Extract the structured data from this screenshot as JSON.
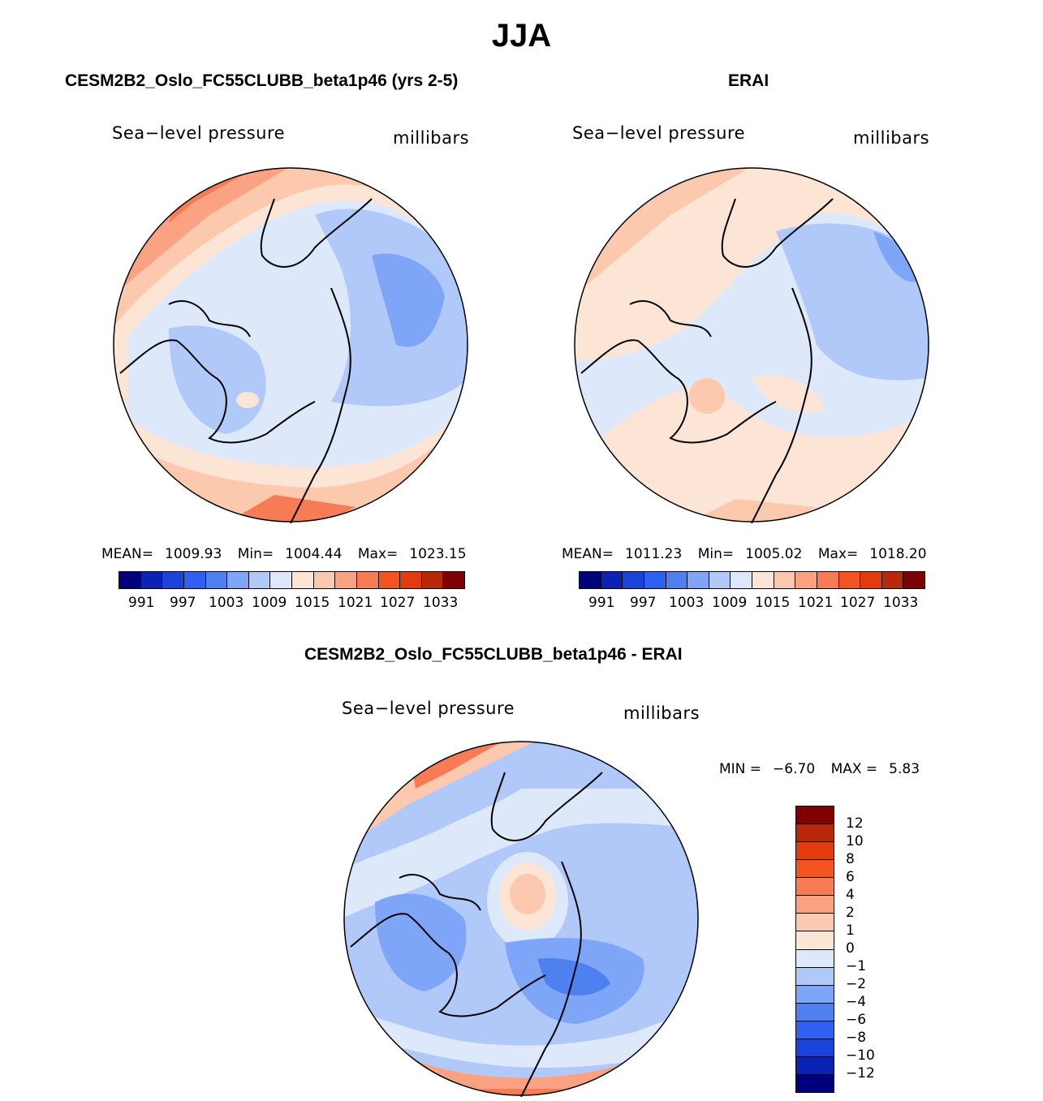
{
  "title": "JJA",
  "colors": {
    "abs_scale": [
      "#00007f",
      "#0a23b4",
      "#1a43d9",
      "#2e61f2",
      "#4f80f0",
      "#7ea5f7",
      "#b0c9f9",
      "#dde9fb",
      "#fde5d6",
      "#fcc8ae",
      "#fba283",
      "#f77b54",
      "#f4541f",
      "#e23c0e",
      "#b82809",
      "#7f0000"
    ],
    "diff_scale": [
      "#00007f",
      "#0a23b4",
      "#1a43d9",
      "#2e61f2",
      "#4f80f0",
      "#7ea5f7",
      "#b0c9f9",
      "#dde9fb",
      "#fde5d6",
      "#fcc8ae",
      "#fba283",
      "#f77b54",
      "#f4541f",
      "#e23c0e",
      "#b82809",
      "#7f0000"
    ],
    "coastline": "#000000"
  },
  "panels": [
    {
      "id": "model",
      "title": "CESM2B2_Oslo_FC55CLUBB_beta1p46 (yrs 2-5)",
      "variable": "Sea−level pressure",
      "units": "millibars",
      "stats": {
        "mean_label": "MEAN=",
        "mean": "1009.93",
        "min_label": "Min=",
        "min": "1004.44",
        "max_label": "Max=",
        "max": "1023.15"
      },
      "colorbar_labels": [
        "991",
        "997",
        "1003",
        "1009",
        "1015",
        "1021",
        "1027",
        "1033"
      ]
    },
    {
      "id": "obs",
      "title": "ERAI",
      "variable": "Sea−level pressure",
      "units": "millibars",
      "stats": {
        "mean_label": "MEAN=",
        "mean": "1011.23",
        "min_label": "Min=",
        "min": "1005.02",
        "max_label": "Max=",
        "max": "1018.20"
      },
      "colorbar_labels": [
        "991",
        "997",
        "1003",
        "1009",
        "1015",
        "1021",
        "1027",
        "1033"
      ]
    },
    {
      "id": "diff",
      "title": "CESM2B2_Oslo_FC55CLUBB_beta1p46 - ERAI",
      "variable": "Sea−level pressure",
      "units": "millibars",
      "stats": {
        "min_label": "MIN =",
        "min": "−6.70",
        "max_label": "MAX =",
        "max": "5.83"
      },
      "colorbar_labels": [
        "12",
        "10",
        "8",
        "6",
        "4",
        "2",
        "1",
        "0",
        "−1",
        "−2",
        "−4",
        "−6",
        "−8",
        "−10",
        "−12"
      ]
    }
  ]
}
